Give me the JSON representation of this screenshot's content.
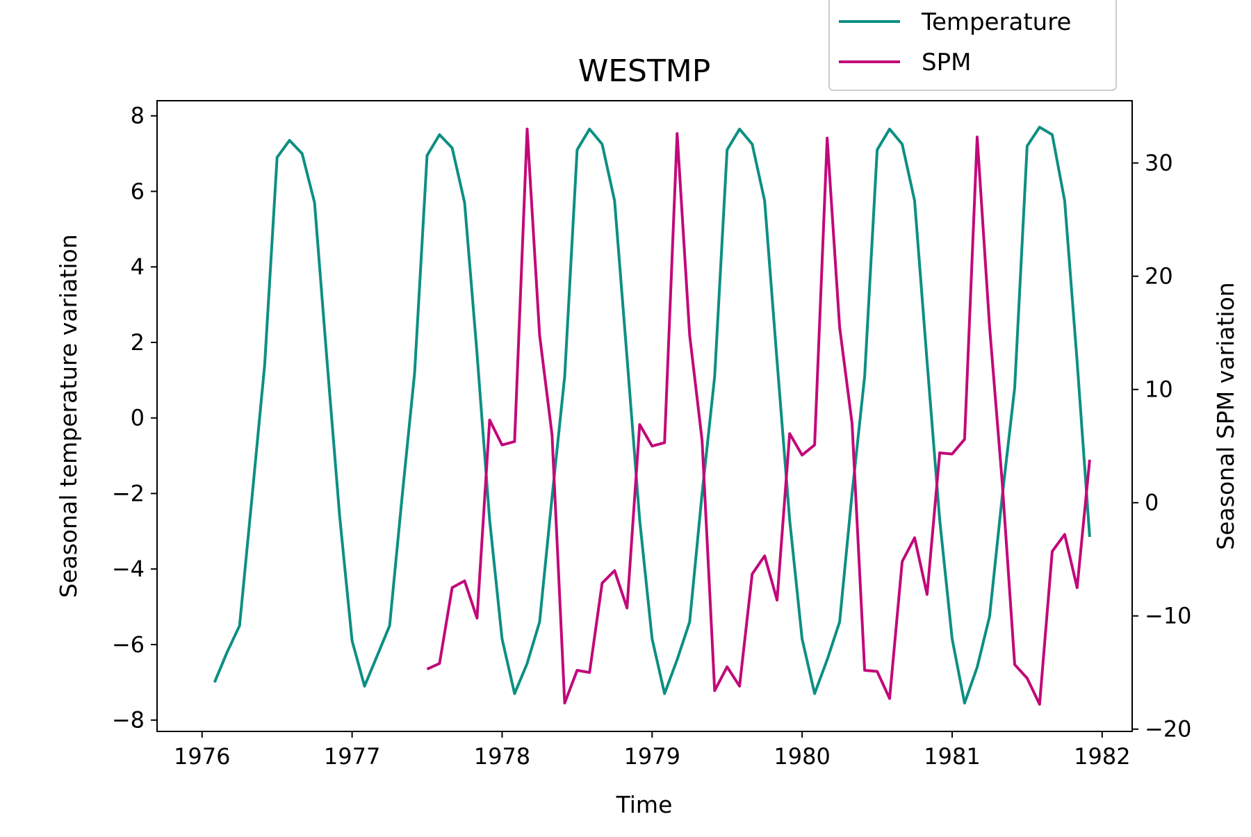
{
  "chart_data": {
    "type": "line",
    "title": "WESTMP",
    "xlabel": "Time",
    "ylabel": "Seasonal temperature variation",
    "y2label": "Seasonal SPM variation",
    "xlim": [
      1975.7,
      1982.2
    ],
    "ylim": [
      -8.3,
      8.4
    ],
    "y2lim": [
      -20.2,
      35.5
    ],
    "xticks": [
      1976,
      1977,
      1978,
      1979,
      1980,
      1981,
      1982
    ],
    "yticks": [
      -8,
      -6,
      -4,
      -2,
      0,
      2,
      4,
      6,
      8
    ],
    "y2ticks": [
      -20,
      -10,
      0,
      10,
      20,
      30
    ],
    "legend_position": "top-right, above the plot",
    "grid": false,
    "series": [
      {
        "name": "Temperature",
        "axis": "left",
        "color": "#0d8f83",
        "points": [
          [
            1976.083,
            -7.0
          ],
          [
            1976.167,
            -6.2
          ],
          [
            1976.25,
            -5.5
          ],
          [
            1976.333,
            -2.1
          ],
          [
            1976.417,
            1.4
          ],
          [
            1976.5,
            6.9
          ],
          [
            1976.583,
            7.35
          ],
          [
            1976.667,
            7.0
          ],
          [
            1976.75,
            5.7
          ],
          [
            1976.833,
            1.5
          ],
          [
            1976.917,
            -2.6
          ],
          [
            1977.0,
            -5.9
          ],
          [
            1977.083,
            -7.1
          ],
          [
            1977.167,
            -6.3
          ],
          [
            1977.25,
            -5.5
          ],
          [
            1977.333,
            -2.1
          ],
          [
            1977.417,
            1.2
          ],
          [
            1977.5,
            6.95
          ],
          [
            1977.583,
            7.5
          ],
          [
            1977.667,
            7.15
          ],
          [
            1977.75,
            5.7
          ],
          [
            1977.833,
            1.7
          ],
          [
            1977.917,
            -2.7
          ],
          [
            1978.0,
            -5.85
          ],
          [
            1978.083,
            -7.3
          ],
          [
            1978.167,
            -6.5
          ],
          [
            1978.25,
            -5.4
          ],
          [
            1978.333,
            -2.1
          ],
          [
            1978.417,
            1.1
          ],
          [
            1978.5,
            7.1
          ],
          [
            1978.583,
            7.65
          ],
          [
            1978.667,
            7.25
          ],
          [
            1978.75,
            5.75
          ],
          [
            1978.833,
            1.6
          ],
          [
            1978.917,
            -2.7
          ],
          [
            1979.0,
            -5.85
          ],
          [
            1979.083,
            -7.3
          ],
          [
            1979.167,
            -6.4
          ],
          [
            1979.25,
            -5.4
          ],
          [
            1979.333,
            -2.0
          ],
          [
            1979.417,
            1.1
          ],
          [
            1979.5,
            7.1
          ],
          [
            1979.583,
            7.65
          ],
          [
            1979.667,
            7.25
          ],
          [
            1979.75,
            5.75
          ],
          [
            1979.833,
            1.5
          ],
          [
            1979.917,
            -2.7
          ],
          [
            1980.0,
            -5.85
          ],
          [
            1980.083,
            -7.3
          ],
          [
            1980.167,
            -6.4
          ],
          [
            1980.25,
            -5.4
          ],
          [
            1980.333,
            -2.0
          ],
          [
            1980.417,
            1.1
          ],
          [
            1980.5,
            7.1
          ],
          [
            1980.583,
            7.65
          ],
          [
            1980.667,
            7.25
          ],
          [
            1980.75,
            5.75
          ],
          [
            1980.833,
            1.5
          ],
          [
            1980.917,
            -2.7
          ],
          [
            1981.0,
            -5.85
          ],
          [
            1981.083,
            -7.55
          ],
          [
            1981.167,
            -6.6
          ],
          [
            1981.25,
            -5.25
          ],
          [
            1981.333,
            -2.1
          ],
          [
            1981.417,
            0.8
          ],
          [
            1981.5,
            7.2
          ],
          [
            1981.583,
            7.7
          ],
          [
            1981.667,
            7.5
          ],
          [
            1981.75,
            5.75
          ],
          [
            1981.833,
            1.5
          ],
          [
            1981.917,
            -3.15
          ]
        ]
      },
      {
        "name": "SPM",
        "axis": "right",
        "color": "#c2087a",
        "points": [
          [
            1977.5,
            -14.7
          ],
          [
            1977.583,
            -14.2
          ],
          [
            1977.667,
            -7.5
          ],
          [
            1977.75,
            -6.9
          ],
          [
            1977.833,
            -10.2
          ],
          [
            1977.917,
            7.3
          ],
          [
            1978.0,
            5.1
          ],
          [
            1978.083,
            5.4
          ],
          [
            1978.167,
            33.0
          ],
          [
            1978.25,
            14.8
          ],
          [
            1978.333,
            6.0
          ],
          [
            1978.417,
            -17.7
          ],
          [
            1978.5,
            -14.8
          ],
          [
            1978.583,
            -15.0
          ],
          [
            1978.667,
            -7.1
          ],
          [
            1978.75,
            -6.0
          ],
          [
            1978.833,
            -9.3
          ],
          [
            1978.917,
            6.9
          ],
          [
            1979.0,
            5.0
          ],
          [
            1979.083,
            5.3
          ],
          [
            1979.167,
            32.6
          ],
          [
            1979.25,
            14.8
          ],
          [
            1979.333,
            5.5
          ],
          [
            1979.417,
            -16.6
          ],
          [
            1979.5,
            -14.5
          ],
          [
            1979.583,
            -16.2
          ],
          [
            1979.667,
            -6.3
          ],
          [
            1979.75,
            -4.7
          ],
          [
            1979.833,
            -8.6
          ],
          [
            1979.917,
            6.1
          ],
          [
            1980.0,
            4.2
          ],
          [
            1980.083,
            5.1
          ],
          [
            1980.167,
            32.2
          ],
          [
            1980.25,
            15.5
          ],
          [
            1980.333,
            7.0
          ],
          [
            1980.417,
            -14.8
          ],
          [
            1980.5,
            -14.9
          ],
          [
            1980.583,
            -17.3
          ],
          [
            1980.667,
            -5.2
          ],
          [
            1980.75,
            -3.1
          ],
          [
            1980.833,
            -8.1
          ],
          [
            1980.917,
            4.4
          ],
          [
            1981.0,
            4.3
          ],
          [
            1981.083,
            5.6
          ],
          [
            1981.167,
            32.3
          ],
          [
            1981.25,
            15.5
          ],
          [
            1981.333,
            1.9
          ],
          [
            1981.417,
            -14.3
          ],
          [
            1981.5,
            -15.5
          ],
          [
            1981.583,
            -17.8
          ],
          [
            1981.667,
            -4.3
          ],
          [
            1981.75,
            -2.8
          ],
          [
            1981.833,
            -7.5
          ],
          [
            1981.917,
            3.8
          ]
        ]
      }
    ]
  }
}
